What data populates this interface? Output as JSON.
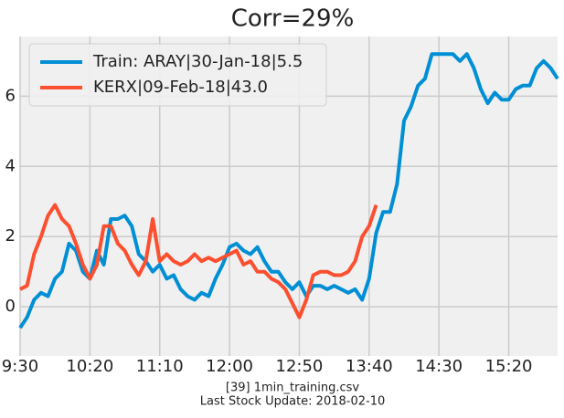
{
  "chart_data": {
    "type": "line",
    "title": "Corr=29%",
    "x": [
      "9:30",
      "9:35",
      "9:40",
      "9:45",
      "9:50",
      "9:55",
      "10:00",
      "10:05",
      "10:10",
      "10:15",
      "10:20",
      "10:25",
      "10:30",
      "10:35",
      "10:40",
      "10:45",
      "10:50",
      "10:55",
      "11:00",
      "11:05",
      "11:10",
      "11:15",
      "11:20",
      "11:25",
      "11:30",
      "11:35",
      "11:40",
      "11:45",
      "11:50",
      "11:55",
      "12:00",
      "12:05",
      "12:10",
      "12:15",
      "12:20",
      "12:25",
      "12:30",
      "12:35",
      "12:40",
      "12:45",
      "12:50",
      "12:55",
      "13:00",
      "13:05",
      "13:10",
      "13:15",
      "13:20",
      "13:25",
      "13:30",
      "13:35",
      "13:40",
      "13:45",
      "13:50",
      "13:55",
      "14:00",
      "14:05",
      "14:10",
      "14:15",
      "14:20",
      "14:25",
      "14:30",
      "14:35",
      "14:40",
      "14:45",
      "14:50",
      "14:55",
      "15:00",
      "15:05",
      "15:10",
      "15:15",
      "15:20",
      "15:25",
      "15:30",
      "15:35",
      "15:40",
      "15:45",
      "15:50",
      "15:55"
    ],
    "series": [
      {
        "name": "Train: ARAY|30-Jan-18|5.5",
        "color": "#008fd5",
        "values": [
          -0.6,
          -0.3,
          0.2,
          0.4,
          0.3,
          0.8,
          1.0,
          1.8,
          1.6,
          1.0,
          0.8,
          1.6,
          1.2,
          2.5,
          2.5,
          2.6,
          2.3,
          1.5,
          1.3,
          1.0,
          1.2,
          0.8,
          0.9,
          0.5,
          0.3,
          0.2,
          0.4,
          0.3,
          0.8,
          1.2,
          1.7,
          1.8,
          1.6,
          1.5,
          1.7,
          1.3,
          1.0,
          1.0,
          0.7,
          0.5,
          0.7,
          0.3,
          0.6,
          0.6,
          0.5,
          0.6,
          0.5,
          0.4,
          0.5,
          0.2,
          0.8,
          2.1,
          2.7,
          2.7,
          3.5,
          5.3,
          5.7,
          6.3,
          6.5,
          7.2,
          7.2,
          7.2,
          7.2,
          7.0,
          7.2,
          6.8,
          6.2,
          5.8,
          6.1,
          5.9,
          5.9,
          6.2,
          6.3,
          6.3,
          6.8,
          7.0,
          6.8,
          6.5
        ]
      },
      {
        "name": "KERX|09-Feb-18|43.0",
        "color": "#fc4f30",
        "values": [
          0.5,
          0.6,
          1.5,
          2.0,
          2.6,
          2.9,
          2.5,
          2.3,
          1.8,
          1.2,
          0.8,
          1.2,
          2.3,
          2.3,
          1.8,
          1.6,
          1.2,
          0.9,
          1.3,
          2.5,
          1.3,
          1.5,
          1.3,
          1.2,
          1.3,
          1.5,
          1.3,
          1.4,
          1.3,
          1.4,
          1.5,
          1.6,
          1.2,
          1.3,
          1.0,
          1.0,
          0.8,
          0.7,
          0.5,
          0.1,
          -0.3,
          0.2,
          0.9,
          1.0,
          1.0,
          0.9,
          0.9,
          1.0,
          1.3,
          2.0,
          2.3,
          2.9,
          null,
          null,
          null,
          null,
          null,
          null,
          null,
          null,
          null,
          null,
          null,
          null,
          null,
          null,
          null,
          null,
          null,
          null,
          null,
          null,
          null,
          null,
          null,
          null,
          null,
          null
        ]
      }
    ],
    "ylim": [
      -1.4,
      7.7
    ],
    "yticks": [
      0,
      2,
      4,
      6
    ],
    "xticks": [
      "9:30",
      "10:20",
      "11:10",
      "12:00",
      "12:50",
      "13:40",
      "14:30",
      "15:20"
    ],
    "grid": true,
    "legend": "upper left",
    "footer": [
      "[39] 1min_training.csv",
      "Last Stock Update: 2018-02-10"
    ]
  }
}
